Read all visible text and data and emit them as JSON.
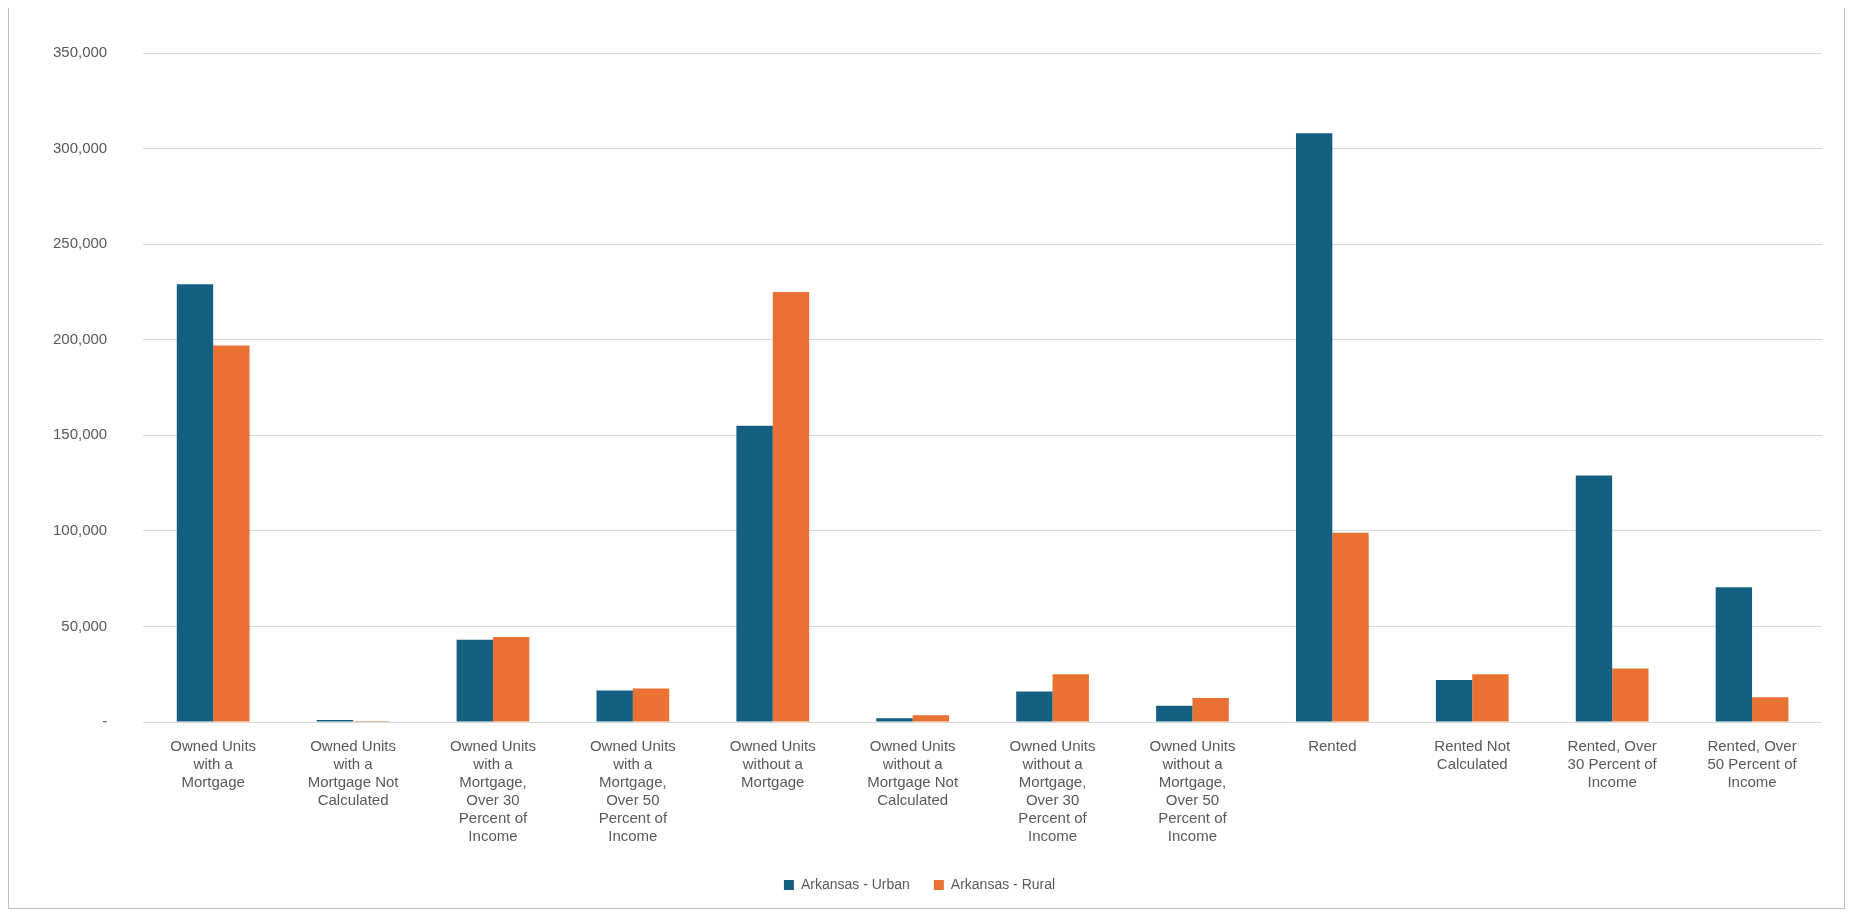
{
  "chart_data": {
    "type": "bar",
    "categories": [
      "Owned Units with a Mortgage",
      "Owned Units with a Mortgage Not Calculated",
      "Owned Units with a Mortgage, Over 30 Percent of Income",
      "Owned Units with a Mortgage, Over 50 Percent of Income",
      "Owned Units without a Mortgage",
      "Owned Units without a Mortgage Not Calculated",
      "Owned Units without a Mortgage, Over 30 Percent of Income",
      "Owned Units without a Mortgage, Over 50 Percent of Income",
      "Rented",
      "Rented Not Calculated",
      "Rented, Over 30 Percent of Income",
      "Rented, Over 50 Percent of Income"
    ],
    "series": [
      {
        "name": "Arkansas - Urban",
        "color": "#156082",
        "values": [
          229000,
          1000,
          43000,
          16500,
          155000,
          2000,
          16000,
          8500,
          308000,
          22000,
          129000,
          70500
        ]
      },
      {
        "name": "Arkansas - Rural",
        "color": "#e97132",
        "values": [
          197000,
          500,
          44500,
          17500,
          225000,
          3500,
          25000,
          12500,
          99000,
          25000,
          28000,
          13000
        ]
      }
    ],
    "ylim": [
      0,
      350000
    ],
    "yticks": [
      {
        "value": 0,
        "label": "-"
      },
      {
        "value": 50000,
        "label": "50,000"
      },
      {
        "value": 100000,
        "label": "100,000"
      },
      {
        "value": 150000,
        "label": "150,000"
      },
      {
        "value": 200000,
        "label": "200,000"
      },
      {
        "value": 250000,
        "label": "250,000"
      },
      {
        "value": 300000,
        "label": "300,000"
      },
      {
        "value": 350000,
        "label": "350,000"
      }
    ],
    "grid": "y",
    "legend": "bottom"
  }
}
